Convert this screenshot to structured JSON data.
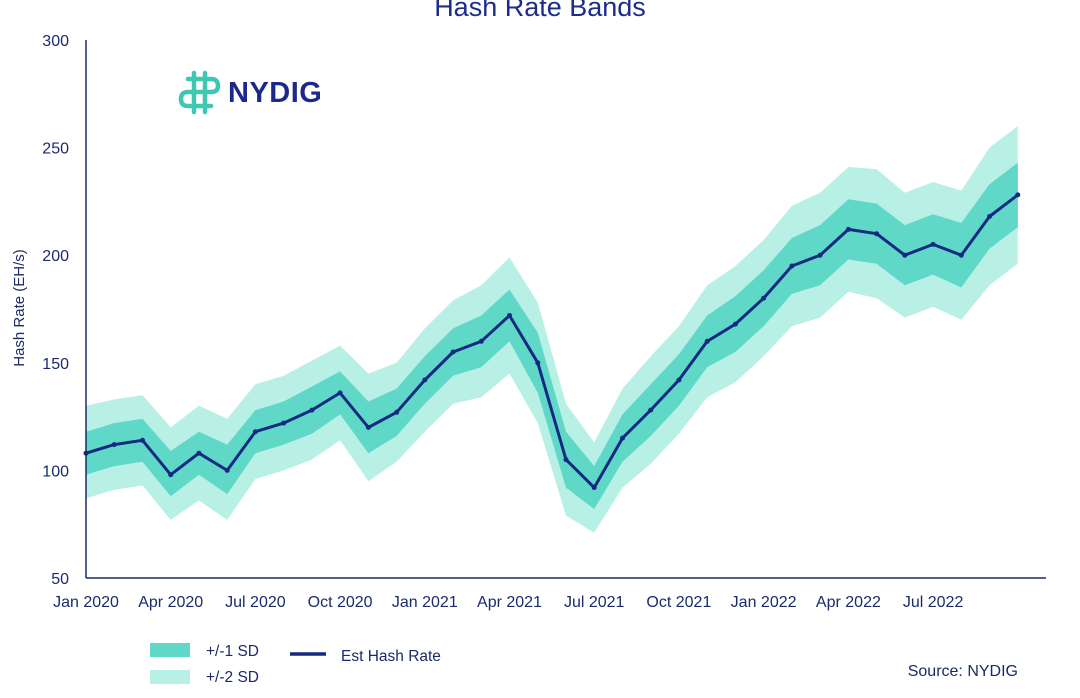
{
  "chart_data": {
    "type": "line",
    "title": "Hash Rate Bands",
    "ylabel": "Hash Rate (EH/s)",
    "ylim": [
      50,
      300
    ],
    "yticks": [
      50,
      100,
      150,
      200,
      250,
      300
    ],
    "xlim": [
      "2020-01",
      "2022-11"
    ],
    "xticks": [
      "Jan 2020",
      "Apr 2020",
      "Jul 2020",
      "Oct 2020",
      "Jan 2021",
      "Apr 2021",
      "Jul 2021",
      "Oct 2021",
      "Jan 2022",
      "Apr 2022",
      "Jul 2022"
    ],
    "grid": false,
    "legend_position": "bottom-left",
    "series": [
      {
        "name": "Est Hash Rate",
        "color": "#142a80",
        "x": [
          "2020-01",
          "2020-02",
          "2020-03",
          "2020-04",
          "2020-05",
          "2020-06",
          "2020-07",
          "2020-08",
          "2020-09",
          "2020-10",
          "2020-11",
          "2020-12",
          "2021-01",
          "2021-02",
          "2021-03",
          "2021-04",
          "2021-05",
          "2021-06",
          "2021-07",
          "2021-08",
          "2021-09",
          "2021-10",
          "2021-11",
          "2021-12",
          "2022-01",
          "2022-02",
          "2022-03",
          "2022-04",
          "2022-05",
          "2022-06",
          "2022-07",
          "2022-08",
          "2022-09",
          "2022-10"
        ],
        "values": [
          108,
          112,
          114,
          98,
          108,
          100,
          118,
          122,
          128,
          136,
          120,
          127,
          142,
          155,
          160,
          172,
          150,
          105,
          92,
          115,
          128,
          142,
          160,
          168,
          180,
          195,
          200,
          212,
          210,
          200,
          205,
          200,
          218,
          228
        ]
      },
      {
        "name": "+/-1 SD",
        "color": "#5fd8c8",
        "x": [
          "2020-01",
          "2020-02",
          "2020-03",
          "2020-04",
          "2020-05",
          "2020-06",
          "2020-07",
          "2020-08",
          "2020-09",
          "2020-10",
          "2020-11",
          "2020-12",
          "2021-01",
          "2021-02",
          "2021-03",
          "2021-04",
          "2021-05",
          "2021-06",
          "2021-07",
          "2021-08",
          "2021-09",
          "2021-10",
          "2021-11",
          "2021-12",
          "2022-01",
          "2022-02",
          "2022-03",
          "2022-04",
          "2022-05",
          "2022-06",
          "2022-07",
          "2022-08",
          "2022-09",
          "2022-10"
        ],
        "upper": [
          118,
          122,
          124,
          109,
          118,
          112,
          128,
          132,
          139,
          146,
          132,
          138,
          153,
          166,
          172,
          184,
          164,
          118,
          102,
          126,
          140,
          154,
          172,
          181,
          193,
          208,
          214,
          226,
          224,
          214,
          219,
          215,
          233,
          243
        ],
        "lower": [
          98,
          102,
          104,
          88,
          98,
          89,
          108,
          112,
          117,
          126,
          108,
          116,
          131,
          144,
          148,
          160,
          136,
          92,
          82,
          104,
          116,
          130,
          148,
          155,
          167,
          182,
          186,
          198,
          196,
          186,
          191,
          185,
          203,
          213
        ]
      },
      {
        "name": "+/-2 SD",
        "color": "#b9f0e6",
        "x": [
          "2020-01",
          "2020-02",
          "2020-03",
          "2020-04",
          "2020-05",
          "2020-06",
          "2020-07",
          "2020-08",
          "2020-09",
          "2020-10",
          "2020-11",
          "2020-12",
          "2021-01",
          "2021-02",
          "2021-03",
          "2021-04",
          "2021-05",
          "2021-06",
          "2021-07",
          "2021-08",
          "2021-09",
          "2021-10",
          "2021-11",
          "2021-12",
          "2022-01",
          "2022-02",
          "2022-03",
          "2022-04",
          "2022-05",
          "2022-06",
          "2022-07",
          "2022-08",
          "2022-09",
          "2022-10"
        ],
        "upper": [
          130,
          133,
          135,
          120,
          130,
          124,
          140,
          144,
          151,
          158,
          145,
          150,
          166,
          179,
          186,
          199,
          178,
          131,
          113,
          138,
          153,
          167,
          186,
          195,
          207,
          223,
          229,
          241,
          240,
          229,
          234,
          230,
          250,
          260
        ],
        "lower": [
          87,
          91,
          93,
          77,
          86,
          77,
          96,
          100,
          105,
          114,
          95,
          104,
          118,
          131,
          134,
          145,
          122,
          79,
          71,
          92,
          103,
          117,
          134,
          141,
          153,
          167,
          171,
          183,
          180,
          171,
          176,
          170,
          186,
          196
        ]
      }
    ],
    "source": "Source: NYDIG"
  },
  "logo": {
    "text": "NYDIG",
    "icon": "nydig-logo-icon",
    "color": "#3ec8b4"
  },
  "colors": {
    "line": "#142a80",
    "band1": "#5fd8c8",
    "band2": "#b9f0e6",
    "axis": "#1a2a6c"
  }
}
